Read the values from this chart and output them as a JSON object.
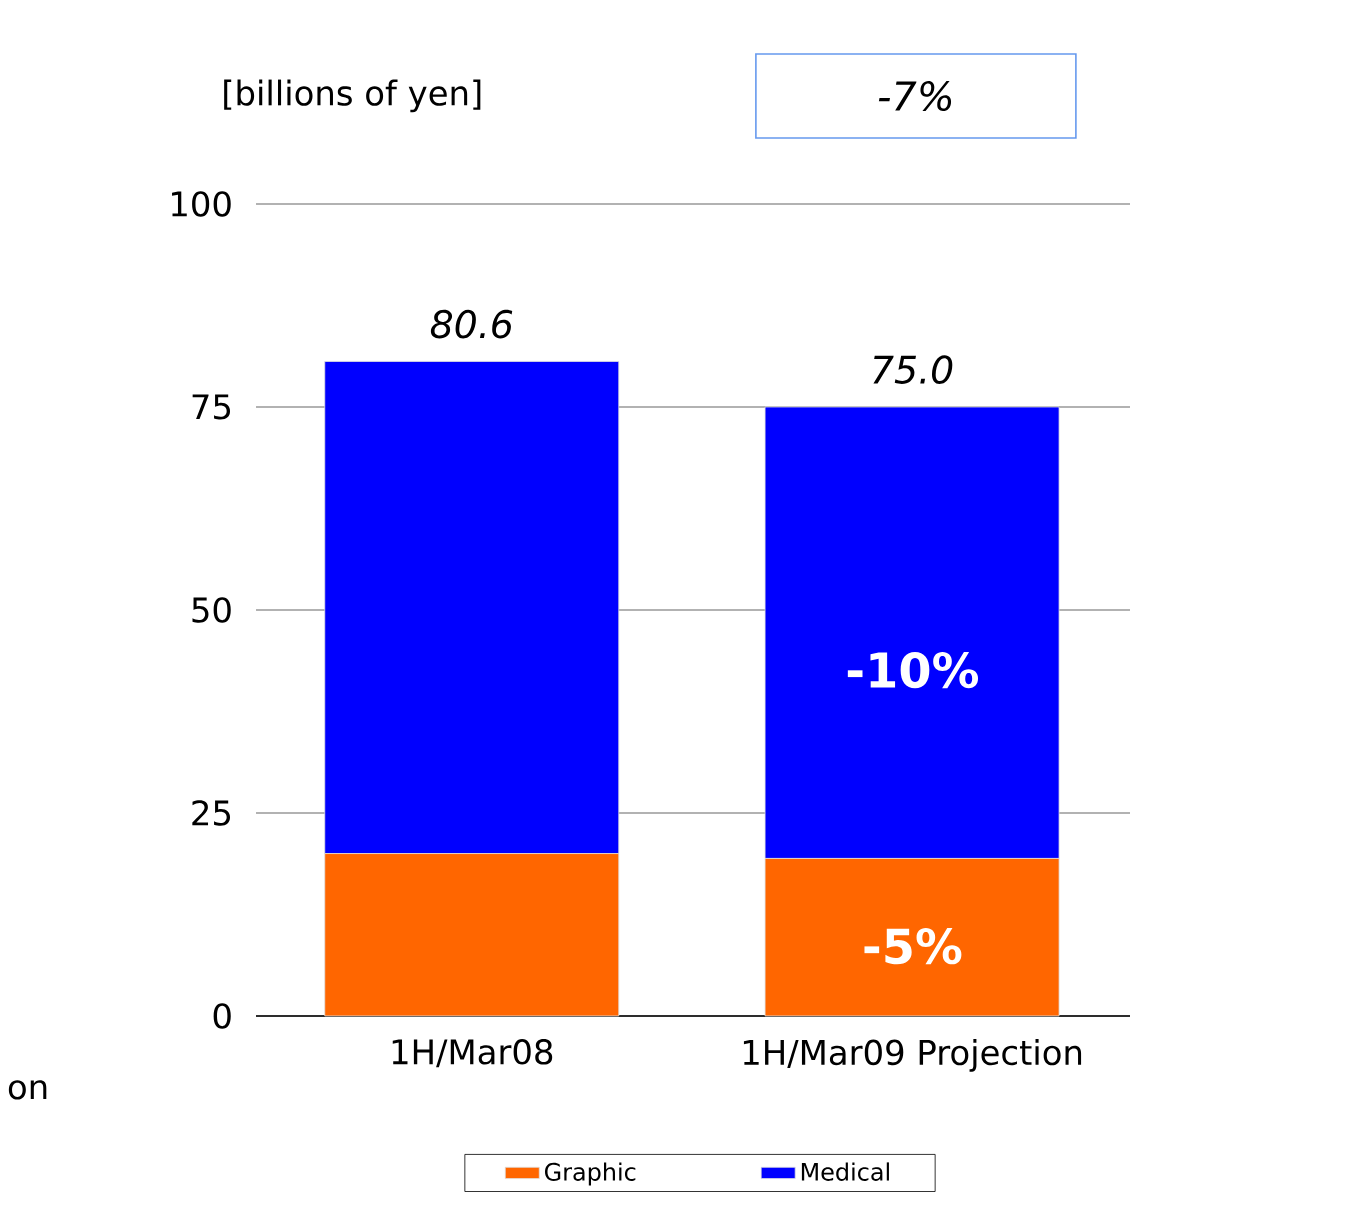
{
  "chart_data": {
    "type": "bar",
    "stacked": true,
    "ylabel": "[billions of yen]",
    "categories": [
      "1H/Mar08",
      "1H/Mar09 Projection"
    ],
    "series": [
      {
        "name": "Graphic",
        "color": "#ff6600",
        "values": [
          20.0,
          19.4
        ]
      },
      {
        "name": "Medical",
        "color": "#0000ff",
        "values": [
          60.6,
          55.6
        ]
      }
    ],
    "totals": [
      "80.6",
      "75.0"
    ],
    "annotations": [
      "-7%",
      "-10%",
      "-5%",
      "on"
    ],
    "ylim": [
      0,
      100
    ],
    "yticks": [
      0,
      25,
      50,
      75,
      100
    ],
    "grid": "y",
    "legend": "bottom"
  }
}
